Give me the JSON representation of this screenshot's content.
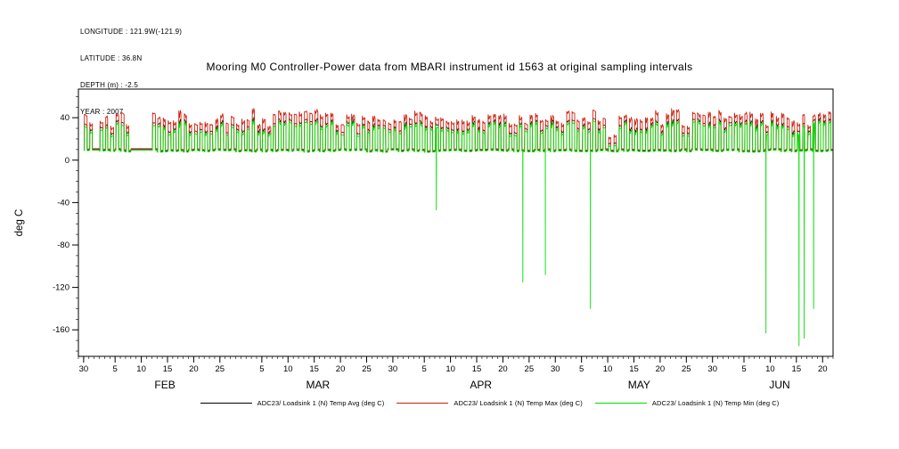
{
  "header": {
    "lines": [
      "LONGITUDE : 121.9W(-121.9)",
      "LATITUDE : 36.8N",
      "DEPTH (m) : -2.5",
      "YEAR : 2007"
    ]
  },
  "chart_data": {
    "type": "line",
    "title": "Mooring M0 Controller-Power data from MBARI instrument id 1563 at original sampling intervals",
    "xlabel": "",
    "ylabel": "deg C",
    "x_start_date": "2007-01-30",
    "xlim": [
      -1,
      143
    ],
    "ylim": [
      -185,
      67
    ],
    "yticks": [
      40,
      0,
      -40,
      -80,
      -120,
      -160
    ],
    "y_minor_step": 10,
    "x_minor_step": 1,
    "grid": false,
    "legend_position": "bottom-center",
    "xticks": [
      {
        "day": 0,
        "label": "30"
      },
      {
        "day": 6,
        "label": "5"
      },
      {
        "day": 11,
        "label": "10"
      },
      {
        "day": 16,
        "label": "15"
      },
      {
        "day": 21,
        "label": "20"
      },
      {
        "day": 26,
        "label": "25"
      },
      {
        "day": 34,
        "label": "5"
      },
      {
        "day": 39,
        "label": "10"
      },
      {
        "day": 44,
        "label": "15"
      },
      {
        "day": 49,
        "label": "20"
      },
      {
        "day": 54,
        "label": "25"
      },
      {
        "day": 59,
        "label": "30"
      },
      {
        "day": 65,
        "label": "5"
      },
      {
        "day": 70,
        "label": "10"
      },
      {
        "day": 75,
        "label": "15"
      },
      {
        "day": 80,
        "label": "20"
      },
      {
        "day": 85,
        "label": "25"
      },
      {
        "day": 90,
        "label": "30"
      },
      {
        "day": 95,
        "label": "5"
      },
      {
        "day": 100,
        "label": "10"
      },
      {
        "day": 105,
        "label": "15"
      },
      {
        "day": 110,
        "label": "20"
      },
      {
        "day": 115,
        "label": "25"
      },
      {
        "day": 120,
        "label": "30"
      },
      {
        "day": 126,
        "label": "5"
      },
      {
        "day": 131,
        "label": "10"
      },
      {
        "day": 136,
        "label": "15"
      },
      {
        "day": 141,
        "label": "20"
      }
    ],
    "month_labels": [
      {
        "day": 15.5,
        "label": "FEB"
      },
      {
        "day": 44.7,
        "label": "MAR"
      },
      {
        "day": 75.8,
        "label": "APR"
      },
      {
        "day": 106.0,
        "label": "MAY"
      },
      {
        "day": 132.8,
        "label": "JUN"
      }
    ],
    "series": [
      {
        "name": "ADC23/ Loadsink 1 (N) Temp Avg (deg C)",
        "color": "#000000",
        "role": "avg"
      },
      {
        "name": "ADC23/ Loadsink 1 (N) Temp Max (deg C)",
        "color": "#cc2211",
        "role": "max"
      },
      {
        "name": "ADC23/ Loadsink 1 (N) Temp Min (deg C)",
        "color": "#00dd00",
        "role": "min"
      }
    ],
    "pattern": {
      "description": "Daily on/off heating cycles: baseline ~9 deg C with ~0.6-day pulses peaking ~26-40 deg C (max series ~+4 to +8 higher, min series ~-2 lower); occasional deep negative dropout spikes in the min series.",
      "cycle_period_days": 1,
      "base_low": 9,
      "peak_avg_range": [
        26,
        40
      ],
      "max_offset": 6,
      "min_peak_offset": -2,
      "flat_intervals": [
        {
          "start": 1.6,
          "end": 3.4,
          "value": 10
        },
        {
          "start": 8.6,
          "end": 12.8,
          "value": 10
        }
      ],
      "reduced_intervals": [
        {
          "start": 100.4,
          "end": 102.3,
          "peak": 16
        }
      ]
    },
    "min_spikes": [
      {
        "day": 67.3,
        "value": -47
      },
      {
        "day": 83.8,
        "value": -115
      },
      {
        "day": 88.1,
        "value": -108
      },
      {
        "day": 96.7,
        "value": -140
      },
      {
        "day": 130.2,
        "value": -163
      },
      {
        "day": 136.5,
        "value": -175
      },
      {
        "day": 137.5,
        "value": -168
      },
      {
        "day": 139.3,
        "value": -140
      }
    ]
  }
}
